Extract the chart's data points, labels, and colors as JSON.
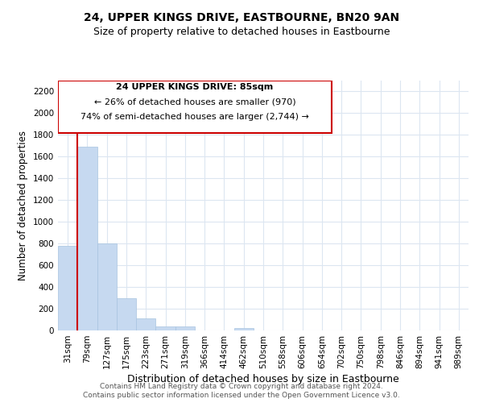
{
  "title": "24, UPPER KINGS DRIVE, EASTBOURNE, BN20 9AN",
  "subtitle": "Size of property relative to detached houses in Eastbourne",
  "xlabel": "Distribution of detached houses by size in Eastbourne",
  "ylabel": "Number of detached properties",
  "bar_labels": [
    "31sqm",
    "79sqm",
    "127sqm",
    "175sqm",
    "223sqm",
    "271sqm",
    "319sqm",
    "366sqm",
    "414sqm",
    "462sqm",
    "510sqm",
    "558sqm",
    "606sqm",
    "654sqm",
    "702sqm",
    "750sqm",
    "798sqm",
    "846sqm",
    "894sqm",
    "941sqm",
    "989sqm"
  ],
  "bar_values": [
    780,
    1690,
    800,
    295,
    110,
    35,
    35,
    0,
    0,
    25,
    0,
    0,
    0,
    0,
    0,
    0,
    0,
    0,
    0,
    0,
    0
  ],
  "bar_color": "#c6d9f0",
  "bar_edge_color": "#a8c4e0",
  "vline_color": "#cc0000",
  "vline_x_index": 1,
  "ylim": [
    0,
    2300
  ],
  "yticks": [
    0,
    200,
    400,
    600,
    800,
    1000,
    1200,
    1400,
    1600,
    1800,
    2000,
    2200
  ],
  "annotation_box_text_line1": "24 UPPER KINGS DRIVE: 85sqm",
  "annotation_box_text_line2": "← 26% of detached houses are smaller (970)",
  "annotation_box_text_line3": "74% of semi-detached houses are larger (2,744) →",
  "annotation_box_color": "#ffffff",
  "annotation_box_edge_color": "#cc0000",
  "footer_line1": "Contains HM Land Registry data © Crown copyright and database right 2024.",
  "footer_line2": "Contains public sector information licensed under the Open Government Licence v3.0.",
  "background_color": "#ffffff",
  "grid_color": "#dce6f1",
  "title_fontsize": 10,
  "subtitle_fontsize": 9,
  "xlabel_fontsize": 9,
  "ylabel_fontsize": 8.5,
  "tick_fontsize": 7.5,
  "annotation_fontsize": 8,
  "footer_fontsize": 6.5
}
